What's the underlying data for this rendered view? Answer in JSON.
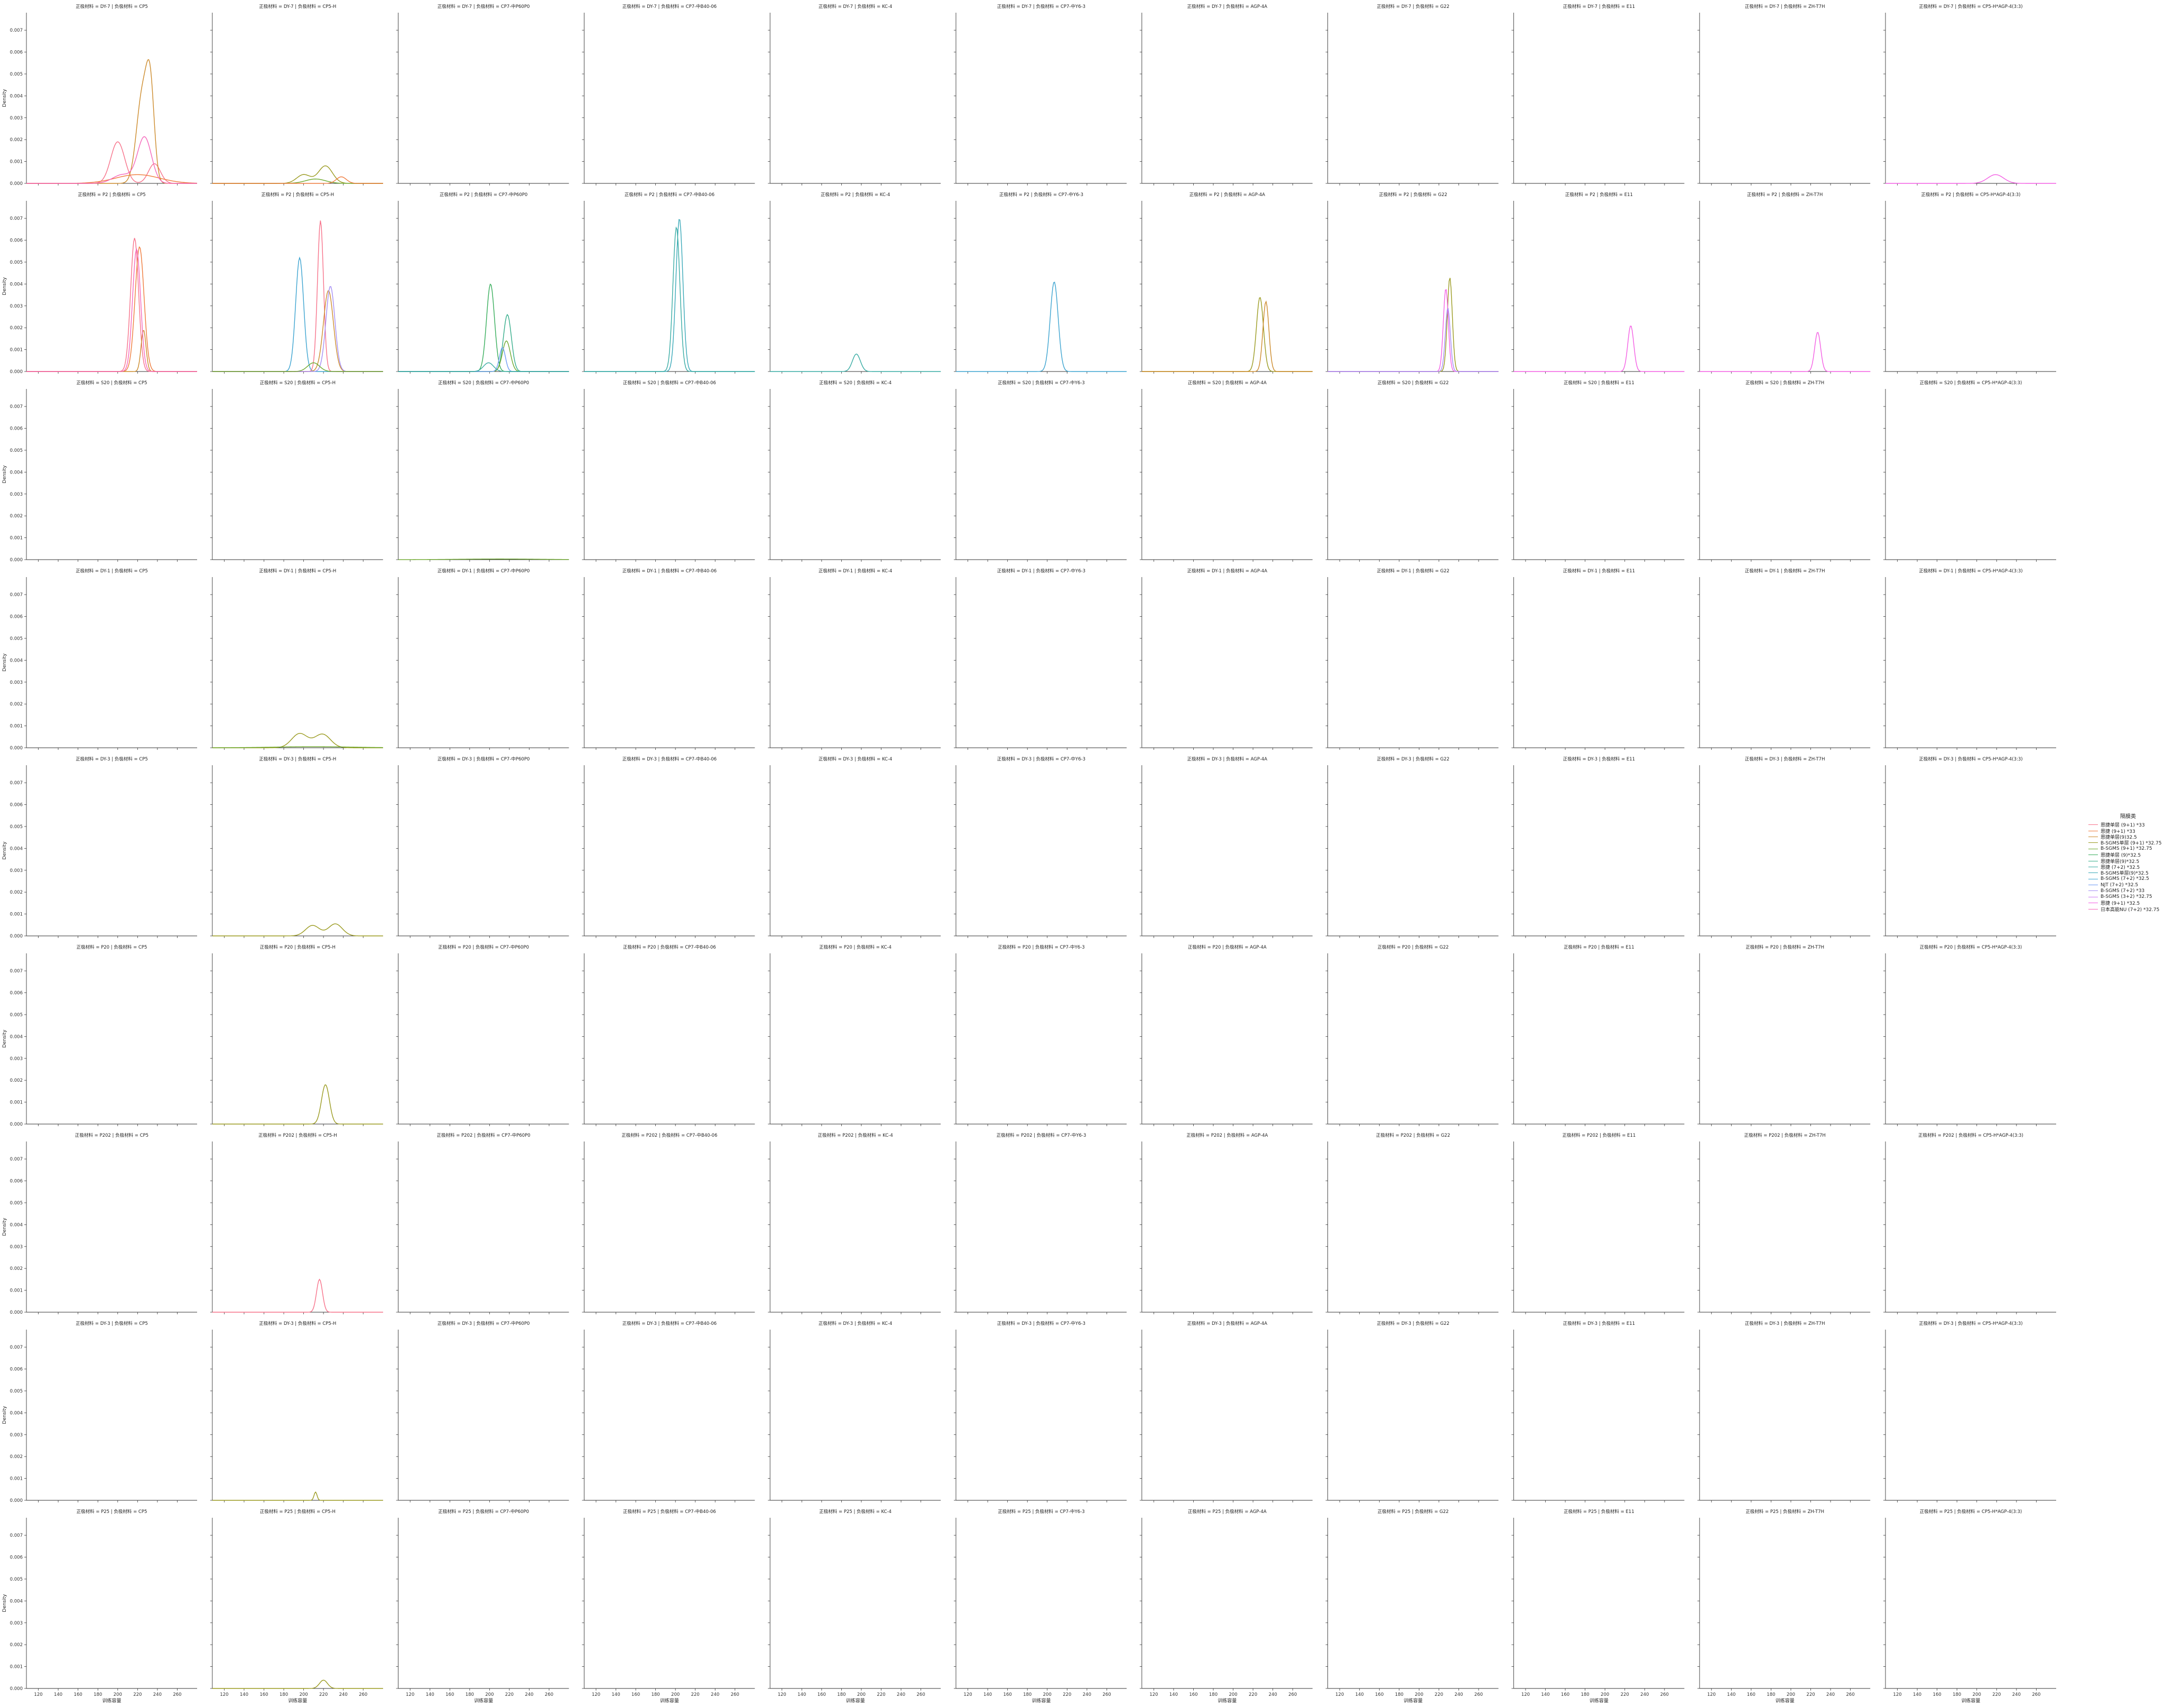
{
  "chart_data": {
    "type": "line",
    "layout": "facet-grid",
    "xlabel": "训练容量",
    "ylabel": "Density",
    "xticks": [
      120,
      140,
      160,
      180,
      200,
      220,
      240,
      260
    ],
    "yticks": [
      "0.000",
      "0.001",
      "0.002",
      "0.003",
      "0.004",
      "0.005",
      "0.006",
      "0.007"
    ],
    "xlim": [
      108,
      280
    ],
    "ylim": [
      0,
      0.0078
    ],
    "row_var": "正极材料",
    "col_var": "负极材料",
    "rows": [
      "DY-7",
      "P2",
      "S20",
      "DY-1",
      "DY-3",
      "P20",
      "P202",
      "DY-3",
      "P25"
    ],
    "cols": [
      "CP5",
      "CP5-H",
      "CP7-中P60P0",
      "CP7-中B40-06",
      "KC-4",
      "CP7-中Y6-3",
      "AGP-4A",
      "G22",
      "E11",
      "ZH-T7H",
      "CP5-H*AGP-4(3:3)"
    ],
    "legend": {
      "title": "隔膜类",
      "entries": [
        {
          "name": "恩捷单层 (9+1) *33",
          "color": "#f77189"
        },
        {
          "name": "恩捷 (9+1) *33",
          "color": "#ef7a3a"
        },
        {
          "name": "恩捷单层(9)32.5",
          "color": "#cc8a2a"
        },
        {
          "name": "B-SGMS单层 (9+1) *32.75",
          "color": "#9a9a1f"
        },
        {
          "name": "B-SGMS (9+1) *32.75",
          "color": "#6ca82c"
        },
        {
          "name": "恩捷单层 (9)*32.5",
          "color": "#36ad5a"
        },
        {
          "name": "恩捷单层(9)*32.5",
          "color": "#34ad8a"
        },
        {
          "name": "恩捷 (7+2) *32.5",
          "color": "#37aba3"
        },
        {
          "name": "B-SGMS单层(9)*32.5",
          "color": "#38a8b8"
        },
        {
          "name": "B-SGMS (7+2) *32.5",
          "color": "#3ba3d0"
        },
        {
          "name": "NJT (7+2) *32.5",
          "color": "#6e9bf4"
        },
        {
          "name": "B-SGMS (7+2) *33",
          "color": "#a48cf4"
        },
        {
          "name": "B-SGMS (3+2) *32.75",
          "color": "#cc79f4"
        },
        {
          "name": "恩捷 (9+1) *32.5",
          "color": "#f45ee4"
        },
        {
          "name": "日本高能NU (7+2) *32.75",
          "color": "#f565ba"
        }
      ]
    },
    "curves": [
      {
        "row": 0,
        "col": 0,
        "series": 0,
        "peaks": [
          [
            200,
            0.0019,
            7
          ],
          [
            237,
            0.0009,
            6
          ]
        ]
      },
      {
        "row": 0,
        "col": 0,
        "series": 1,
        "peaks": [
          [
            220,
            0.0004,
            22
          ]
        ]
      },
      {
        "row": 0,
        "col": 0,
        "series": 2,
        "peaks": [
          [
            225,
            0.0041,
            6
          ],
          [
            233,
            0.0036,
            4
          ]
        ]
      },
      {
        "row": 0,
        "col": 0,
        "series": 14,
        "peaks": [
          [
            227,
            0.0021,
            7
          ],
          [
            205,
            0.0004,
            10
          ]
        ]
      },
      {
        "row": 0,
        "col": 1,
        "series": 3,
        "peaks": [
          [
            200,
            0.0004,
            7
          ],
          [
            222,
            0.0008,
            7
          ]
        ]
      },
      {
        "row": 0,
        "col": 1,
        "series": 4,
        "peaks": [
          [
            212,
            0.0002,
            10
          ]
        ]
      },
      {
        "row": 0,
        "col": 1,
        "series": 1,
        "peaks": [
          [
            238,
            0.0003,
            5
          ]
        ]
      },
      {
        "row": 0,
        "col": 10,
        "series": 13,
        "peaks": [
          [
            219,
            0.0004,
            8
          ]
        ]
      },
      {
        "row": 1,
        "col": 0,
        "series": 0,
        "peaks": [
          [
            217,
            0.0061,
            4
          ]
        ]
      },
      {
        "row": 1,
        "col": 0,
        "series": 1,
        "peaks": [
          [
            222,
            0.0057,
            4.5
          ]
        ]
      },
      {
        "row": 1,
        "col": 0,
        "series": 2,
        "peaks": [
          [
            226,
            0.0019,
            2.5
          ]
        ]
      },
      {
        "row": 1,
        "col": 0,
        "series": 14,
        "peaks": [
          [
            219,
            0.0056,
            4
          ]
        ]
      },
      {
        "row": 1,
        "col": 1,
        "series": 9,
        "peaks": [
          [
            196,
            0.0052,
            4
          ]
        ]
      },
      {
        "row": 1,
        "col": 1,
        "series": 0,
        "peaks": [
          [
            217,
            0.0069,
            3
          ]
        ]
      },
      {
        "row": 1,
        "col": 1,
        "series": 2,
        "peaks": [
          [
            225,
            0.0037,
            5
          ]
        ]
      },
      {
        "row": 1,
        "col": 1,
        "series": 11,
        "peaks": [
          [
            227,
            0.0039,
            4.5
          ]
        ]
      },
      {
        "row": 1,
        "col": 1,
        "series": 4,
        "peaks": [
          [
            210,
            0.0004,
            6
          ]
        ]
      },
      {
        "row": 1,
        "col": 2,
        "series": 5,
        "peaks": [
          [
            201,
            0.004,
            4
          ]
        ]
      },
      {
        "row": 1,
        "col": 2,
        "series": 6,
        "peaks": [
          [
            218,
            0.0026,
            4
          ]
        ]
      },
      {
        "row": 1,
        "col": 2,
        "series": 4,
        "peaks": [
          [
            217,
            0.0014,
            4
          ]
        ]
      },
      {
        "row": 1,
        "col": 2,
        "series": 10,
        "peaks": [
          [
            213,
            0.0011,
            3
          ]
        ]
      },
      {
        "row": 1,
        "col": 2,
        "series": 7,
        "peaks": [
          [
            199,
            0.0004,
            5
          ]
        ]
      },
      {
        "row": 1,
        "col": 3,
        "series": 8,
        "peaks": [
          [
            204,
            0.007,
            3.5
          ]
        ]
      },
      {
        "row": 1,
        "col": 3,
        "series": 7,
        "peaks": [
          [
            201,
            0.0066,
            3.5
          ]
        ]
      },
      {
        "row": 1,
        "col": 4,
        "series": 7,
        "peaks": [
          [
            195,
            0.0008,
            4
          ]
        ]
      },
      {
        "row": 1,
        "col": 5,
        "series": 9,
        "peaks": [
          [
            207,
            0.0041,
            4
          ]
        ]
      },
      {
        "row": 1,
        "col": 6,
        "series": 3,
        "peaks": [
          [
            227,
            0.0034,
            3.5
          ]
        ]
      },
      {
        "row": 1,
        "col": 6,
        "series": 2,
        "peaks": [
          [
            233,
            0.0032,
            3
          ]
        ]
      },
      {
        "row": 1,
        "col": 7,
        "series": 3,
        "peaks": [
          [
            231,
            0.0043,
            2.5
          ]
        ]
      },
      {
        "row": 1,
        "col": 7,
        "series": 13,
        "peaks": [
          [
            227,
            0.0038,
            2.5
          ]
        ]
      },
      {
        "row": 1,
        "col": 7,
        "series": 11,
        "peaks": [
          [
            229,
            0.0029,
            2.5
          ]
        ]
      },
      {
        "row": 1,
        "col": 8,
        "series": 13,
        "peaks": [
          [
            226,
            0.0021,
            3
          ]
        ]
      },
      {
        "row": 1,
        "col": 9,
        "series": 13,
        "peaks": [
          [
            227,
            0.0018,
            3
          ]
        ]
      },
      {
        "row": 2,
        "col": 2,
        "series": 4,
        "peaks": [
          [
            210,
            3e-05,
            40
          ]
        ]
      },
      {
        "row": 3,
        "col": 1,
        "series": 3,
        "peaks": [
          [
            196,
            0.00065,
            8
          ],
          [
            219,
            0.00062,
            8
          ]
        ]
      },
      {
        "row": 3,
        "col": 1,
        "series": 4,
        "peaks": [
          [
            210,
            5e-05,
            40
          ]
        ]
      },
      {
        "row": 4,
        "col": 1,
        "series": 3,
        "peaks": [
          [
            209,
            0.00048,
            7
          ],
          [
            232,
            0.00055,
            7
          ]
        ]
      },
      {
        "row": 5,
        "col": 1,
        "series": 3,
        "peaks": [
          [
            222,
            0.0018,
            4
          ]
        ]
      },
      {
        "row": 6,
        "col": 1,
        "series": 0,
        "peaks": [
          [
            216,
            0.0015,
            3
          ]
        ]
      },
      {
        "row": 7,
        "col": 1,
        "series": 3,
        "peaks": [
          [
            212,
            0.00038,
            1.5
          ]
        ]
      },
      {
        "row": 8,
        "col": 1,
        "series": 3,
        "peaks": [
          [
            220,
            0.00038,
            4
          ]
        ]
      }
    ]
  }
}
